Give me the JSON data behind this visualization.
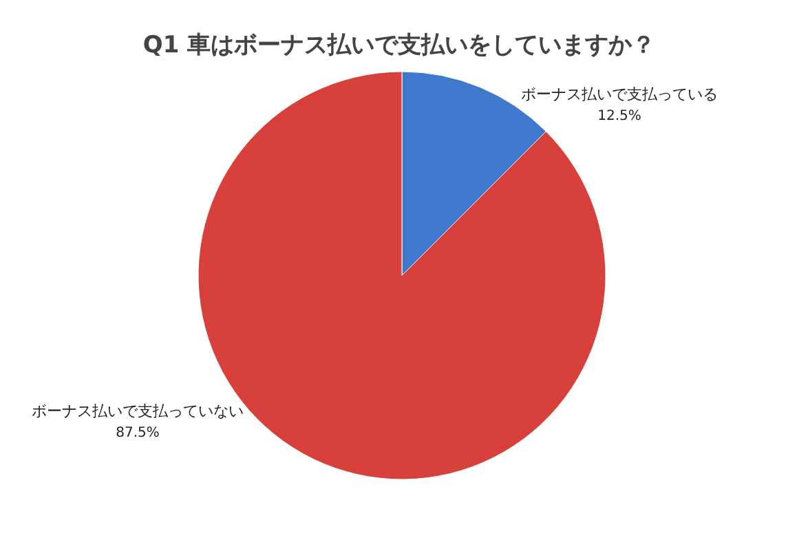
{
  "chart_data": {
    "type": "pie",
    "title": "Q1 車はボーナス払いで支払いをしていますか？",
    "categories": [
      "ボーナス払いで支払っている",
      "ボーナス払いで支払っていない"
    ],
    "values": [
      12.5,
      87.5
    ],
    "colors": [
      "#3f78cc",
      "#d8403c"
    ],
    "value_labels": [
      "12.5%",
      "87.5%"
    ]
  }
}
